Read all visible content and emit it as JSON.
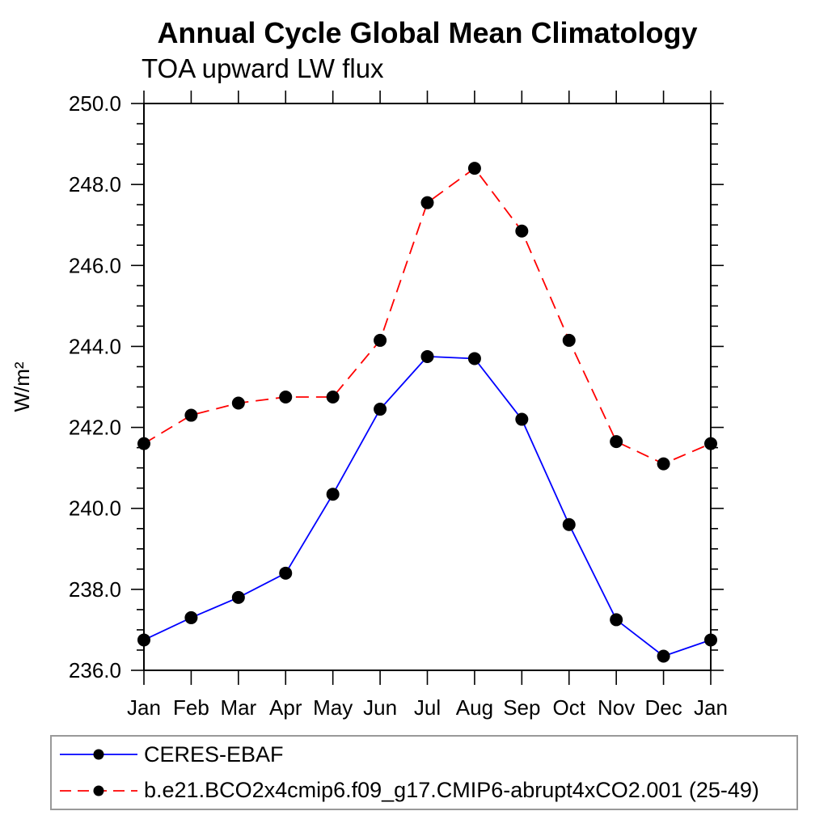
{
  "chart_data": {
    "type": "line",
    "title": "Annual Cycle Global Mean Climatology",
    "subtitle": "TOA upward LW flux",
    "ylabel": "W/m²",
    "xlabel": "",
    "categories": [
      "Jan",
      "Feb",
      "Mar",
      "Apr",
      "May",
      "Jun",
      "Jul",
      "Aug",
      "Sep",
      "Oct",
      "Nov",
      "Dec",
      "Jan"
    ],
    "ylim": [
      236.0,
      250.0
    ],
    "y_major_step": 2.0,
    "y_minor_step": 0.5,
    "y_tick_decimals": 1,
    "grid": "off",
    "legend_position": "bottom-left-box",
    "series": [
      {
        "name": "CERES-EBAF",
        "color": "#0000ff",
        "line_style": "solid",
        "marker": "filled-circle",
        "marker_color": "#000000",
        "values": [
          236.75,
          237.3,
          237.8,
          238.4,
          240.35,
          242.45,
          243.75,
          243.7,
          242.2,
          239.6,
          237.25,
          236.35,
          236.75
        ]
      },
      {
        "name": "b.e21.BCO2x4cmip6.f09_g17.CMIP6-abrupt4xCO2.001 (25-49)",
        "color": "#ff0000",
        "line_style": "dashed",
        "marker": "filled-circle",
        "marker_color": "#000000",
        "values": [
          241.6,
          242.3,
          242.6,
          242.75,
          242.75,
          244.15,
          247.55,
          248.4,
          246.85,
          244.15,
          241.65,
          241.1,
          241.6
        ]
      }
    ]
  }
}
